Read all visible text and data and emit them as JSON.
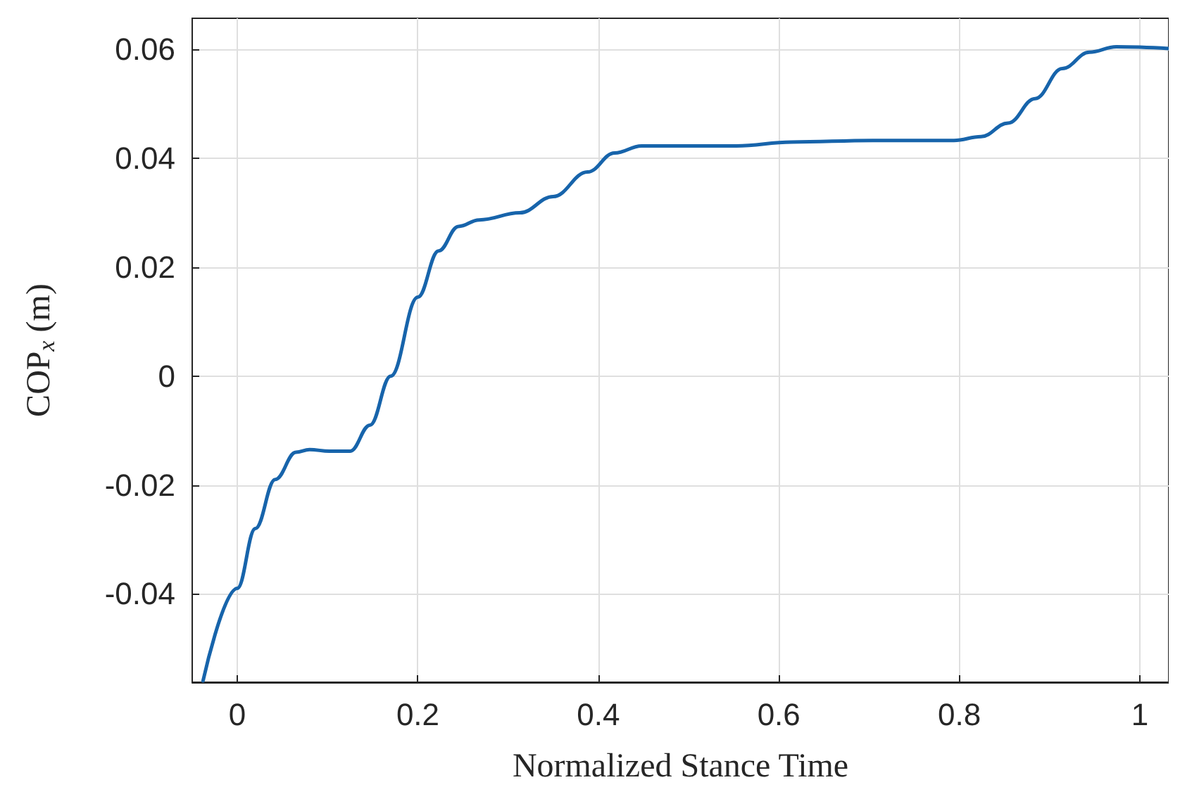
{
  "chart_data": {
    "type": "line",
    "xlabel": "Normalized Stance Time",
    "ylabel": "COP$_{x}$ (m)",
    "xlim": [
      -0.05,
      1.032
    ],
    "ylim": [
      -0.05625,
      0.06575
    ],
    "xticks": [
      0,
      0.2,
      0.4,
      0.6,
      0.8,
      1
    ],
    "yticks": [
      -0.04,
      -0.02,
      0,
      0.02,
      0.04,
      0.06
    ],
    "grid": true,
    "marker": "none",
    "line_style": "solid",
    "series": [
      {
        "color": "#1764ab",
        "x": [
          -0.038,
          0,
          0.02,
          0.042,
          0.065,
          0.08,
          0.102,
          0.125,
          0.147,
          0.17,
          0.2,
          0.223,
          0.245,
          0.268,
          0.313,
          0.35,
          0.388,
          0.418,
          0.448,
          0.493,
          0.553,
          0.614,
          0.704,
          0.794,
          0.824,
          0.854,
          0.884,
          0.914,
          0.944,
          0.974,
          1.032
        ],
        "values": [
          -0.056,
          -0.039,
          -0.028,
          -0.019,
          -0.014,
          -0.0135,
          -0.0138,
          -0.0138,
          -0.009,
          0,
          0.0145,
          0.023,
          0.0275,
          0.0287,
          0.03,
          0.033,
          0.0375,
          0.041,
          0.0423,
          0.0423,
          0.0423,
          0.043,
          0.0433,
          0.0433,
          0.044,
          0.0465,
          0.051,
          0.0565,
          0.0595,
          0.0605,
          0.0602
        ]
      }
    ]
  }
}
